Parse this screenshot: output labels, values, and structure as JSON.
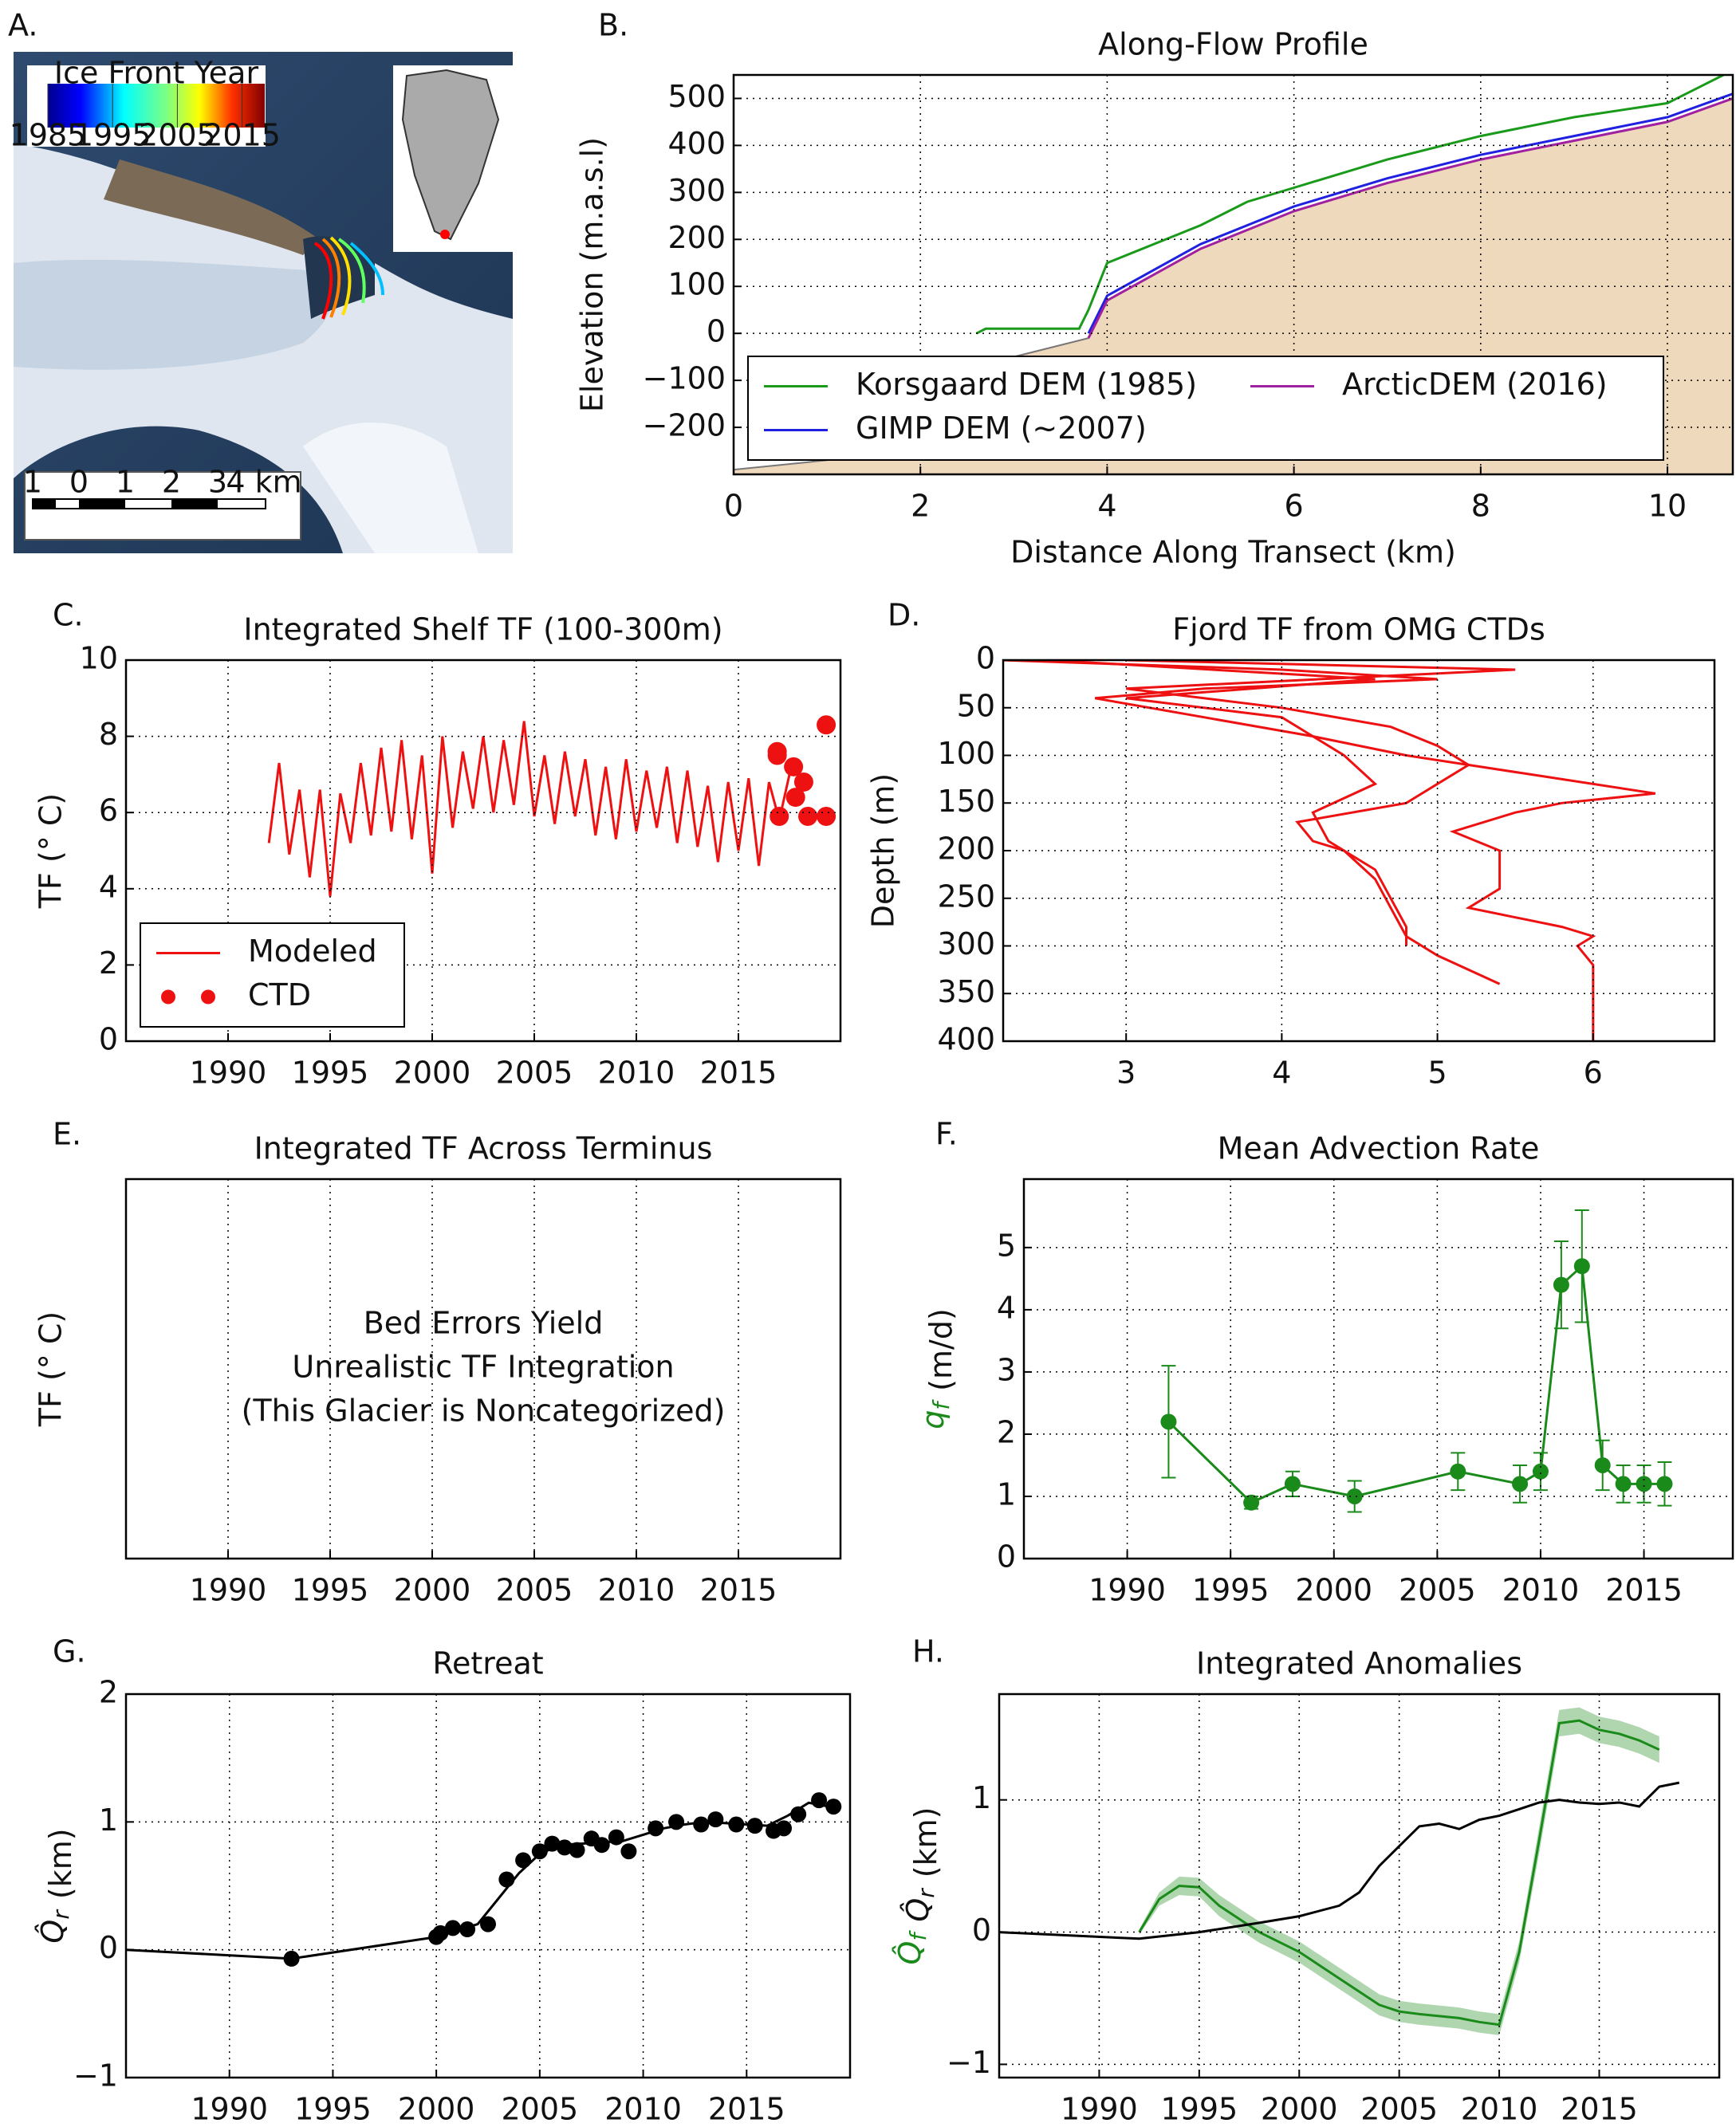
{
  "chart_data": [
    {
      "type": "map",
      "panel": "A.",
      "colorbar_label": "Ice Front Year",
      "colorbar_lim": [
        1985,
        2018.5
      ],
      "colorbar_ticks": [
        1985,
        1995,
        2005,
        2015
      ],
      "scale_labels": [
        "1",
        "0",
        "1",
        "2",
        "3",
        "4 km"
      ]
    },
    {
      "type": "line",
      "panel": "B.",
      "title": "Along-Flow Profile",
      "xlabel": "Distance Along Transect (km)",
      "ylabel": "Elevation (m.a.s.l)",
      "xlim": [
        0,
        10.7
      ],
      "ylim": [
        -300,
        550
      ],
      "xticks": [
        0,
        2,
        4,
        6,
        8,
        10
      ],
      "yticks": [
        {
          "value": -200,
          "label": "−200"
        },
        {
          "value": -100,
          "label": "−100"
        },
        0,
        100,
        200,
        300,
        400,
        500
      ],
      "grid": true,
      "legend": "lower left",
      "legend_ncol": 2,
      "fill": {
        "x": [
          0,
          1,
          2,
          3,
          3.8,
          4,
          5,
          6,
          7,
          8,
          9,
          10,
          10.7
        ],
        "values": [
          -290,
          -270,
          -160,
          -50,
          -10,
          70,
          180,
          260,
          320,
          370,
          410,
          450,
          500
        ],
        "color": "#efd9bd"
      },
      "series": [
        {
          "name": "Korsgaard DEM (1985)",
          "color": "#1a9a1a",
          "x": [
            2.6,
            2.7,
            3.7,
            3.8,
            4,
            5,
            5.5,
            6,
            7,
            8,
            9,
            10,
            10.3,
            10.7
          ],
          "values": [
            0,
            10,
            10,
            50,
            150,
            230,
            280,
            310,
            370,
            420,
            460,
            490,
            520,
            560
          ]
        },
        {
          "name": "GIMP DEM (~2007)",
          "color": "#2020e0",
          "x": [
            3.8,
            4,
            5,
            6,
            7,
            8,
            9,
            10,
            10.7
          ],
          "values": [
            0,
            80,
            190,
            270,
            330,
            380,
            420,
            460,
            510
          ]
        },
        {
          "name": "ArcticDEM (2016)",
          "color": "#a020a0",
          "x": [
            3.8,
            4,
            5,
            6,
            7,
            8,
            9,
            10,
            10.7
          ],
          "values": [
            -10,
            70,
            180,
            260,
            320,
            370,
            410,
            450,
            500
          ]
        }
      ]
    },
    {
      "type": "line",
      "panel": "C.",
      "title": "Integrated Shelf TF (100-300m)",
      "ylabel": "TF (° C)",
      "ylabel_color": "#ee1111",
      "xlim": [
        1985,
        2020
      ],
      "ylim": [
        0,
        10
      ],
      "xticks": [
        1990,
        1995,
        2000,
        2005,
        2010,
        2015
      ],
      "yticks": [
        0,
        2,
        4,
        6,
        8,
        10
      ],
      "grid": true,
      "legend": "lower left",
      "legend_ncol": 1,
      "series": [
        {
          "name": "Modeled",
          "color": "#ee1111",
          "style": "line",
          "x": [
            1992,
            1992.5,
            1993,
            1993.5,
            1994,
            1994.5,
            1995,
            1995.5,
            1996,
            1996.5,
            1997,
            1997.5,
            1998,
            1998.5,
            1999,
            1999.5,
            2000,
            2000.5,
            2001,
            2001.5,
            2002,
            2002.5,
            2003,
            2003.5,
            2004,
            2004.5,
            2005,
            2005.5,
            2006,
            2006.5,
            2007,
            2007.5,
            2008,
            2008.5,
            2009,
            2009.5,
            2010,
            2010.5,
            2011,
            2011.5,
            2012,
            2012.5,
            2013,
            2013.5,
            2014,
            2014.5,
            2015,
            2015.5,
            2016,
            2016.5,
            2017,
            2017.5
          ],
          "values": [
            5.2,
            7.3,
            4.9,
            6.6,
            4.3,
            6.6,
            3.8,
            6.5,
            5.2,
            7.3,
            5.4,
            7.7,
            5.5,
            7.9,
            5.3,
            7.5,
            4.4,
            8.0,
            5.6,
            7.6,
            6.1,
            8.0,
            6.0,
            7.9,
            6.2,
            8.4,
            5.9,
            7.5,
            5.7,
            7.6,
            5.9,
            7.4,
            5.4,
            7.2,
            5.3,
            7.4,
            5.5,
            7.1,
            5.6,
            7.2,
            5.2,
            7.1,
            5.1,
            6.7,
            4.7,
            6.8,
            5.0,
            6.9,
            4.6,
            6.8,
            5.8,
            7.0
          ]
        },
        {
          "name": "CTD",
          "color": "#ee1111",
          "style": "points",
          "x": [
            2016.9,
            2016.9,
            2017,
            2017.7,
            2017.8,
            2018.2,
            2018.4,
            2019.3,
            2019.3
          ],
          "values": [
            7.5,
            7.6,
            5.9,
            7.2,
            6.4,
            6.8,
            5.9,
            8.3,
            5.9
          ]
        }
      ]
    },
    {
      "type": "line",
      "panel": "D.",
      "title": "Fjord TF from OMG CTDs",
      "ylabel": "Depth (m)",
      "xlim": [
        2.21,
        6.78
      ],
      "ylim": [
        400,
        0
      ],
      "xticks": [
        3,
        4,
        5,
        6
      ],
      "yticks": [
        0,
        50,
        100,
        150,
        200,
        250,
        300,
        350,
        400
      ],
      "grid": true,
      "series": [
        {
          "color": "#ee1111",
          "x": [
            2.2,
            4.0,
            5.0,
            3.5,
            2.8,
            3.5,
            4.2,
            4.8,
            5.6,
            6.4,
            5.8,
            5.5,
            5.1,
            5.4,
            5.4,
            5.4,
            5.2,
            5.8,
            6.0,
            5.9,
            6.0,
            6.0,
            6.0,
            6.0,
            6.0
          ],
          "values": [
            0,
            10,
            20,
            30,
            40,
            60,
            80,
            100,
            120,
            140,
            150,
            160,
            180,
            200,
            220,
            240,
            260,
            280,
            290,
            300,
            320,
            340,
            360,
            380,
            400
          ]
        },
        {
          "color": "#ee1111",
          "x": [
            3.0,
            5.5,
            3.0,
            4.0,
            4.7,
            5.0,
            5.2,
            5.0,
            4.8,
            4.1,
            4.2,
            4.4,
            4.6,
            4.7,
            4.8,
            5.0,
            5.4
          ],
          "values": [
            0,
            10,
            30,
            50,
            70,
            90,
            110,
            130,
            150,
            170,
            190,
            200,
            230,
            260,
            290,
            310,
            340
          ]
        },
        {
          "color": "#ee1111",
          "x": [
            2.5,
            4.6,
            3.0,
            4.0,
            4.2,
            4.4,
            4.6,
            4.2,
            4.3,
            4.6,
            4.7,
            4.8,
            4.8
          ],
          "values": [
            0,
            20,
            40,
            60,
            80,
            100,
            130,
            160,
            190,
            220,
            250,
            280,
            300
          ]
        }
      ]
    },
    {
      "type": "line",
      "panel": "E.",
      "title": "Integrated TF Across Terminus",
      "ylabel": "TF (° C)",
      "ylabel_color": "#ee1111",
      "xlim": [
        1985,
        2020
      ],
      "ylim": [
        0,
        10
      ],
      "xticks": [
        1990,
        1995,
        2000,
        2005,
        2010,
        2015
      ],
      "yticks": [],
      "grid": true,
      "annotation": [
        "Bed Errors Yield",
        "Unrealistic TF Integration",
        "(This Glacier is Noncategorized)"
      ],
      "annotation_color": "#ee1111"
    },
    {
      "type": "line",
      "panel": "F.",
      "title": "Mean Advection Rate",
      "ylabel_parts": [
        {
          "text": "q",
          "sub": "f",
          "color": "#1a8a1a"
        },
        {
          "text": "(m/d)"
        }
      ],
      "xlim": [
        1985,
        2019.3
      ],
      "ylim": [
        0,
        6.1
      ],
      "xticks": [
        1990,
        1995,
        2000,
        2005,
        2010,
        2015
      ],
      "yticks": [
        0,
        1,
        2,
        3,
        4,
        5
      ],
      "grid": true,
      "series": [
        {
          "color": "#1a8a1a",
          "style": "errorbar",
          "x": [
            1992,
            1996,
            1998,
            2001,
            2006,
            2009,
            2010,
            2011,
            2012,
            2013,
            2014,
            2015,
            2016
          ],
          "values": [
            2.2,
            0.9,
            1.2,
            1.0,
            1.4,
            1.2,
            1.4,
            4.4,
            4.7,
            1.5,
            1.2,
            1.2,
            1.2
          ],
          "errors": [
            0.9,
            0.1,
            0.2,
            0.25,
            0.3,
            0.3,
            0.3,
            0.7,
            0.9,
            0.4,
            0.3,
            0.3,
            0.35
          ]
        }
      ]
    },
    {
      "type": "line",
      "panel": "G.",
      "title": "Retreat",
      "ylabel_parts": [
        {
          "text": "Q̂",
          "sub": "r"
        },
        {
          "text": "(km)"
        }
      ],
      "xlim": [
        1985,
        2020
      ],
      "ylim": [
        -1,
        2
      ],
      "xticks": [
        1990,
        1995,
        2000,
        2005,
        2010,
        2015
      ],
      "yticks": [
        {
          "value": -1,
          "label": "−1"
        },
        0,
        1,
        2
      ],
      "grid": true,
      "series": [
        {
          "color": "#000000",
          "style": "line",
          "x": [
            1985,
            1993,
            2000,
            2001,
            2002,
            2003,
            2004,
            2005,
            2006,
            2007,
            2008,
            2009,
            2010,
            2011,
            2012,
            2013,
            2014,
            2015,
            2016,
            2017,
            2018,
            2019
          ],
          "values": [
            0,
            -0.07,
            0.1,
            0.15,
            0.2,
            0.4,
            0.6,
            0.75,
            0.82,
            0.83,
            0.84,
            0.85,
            0.9,
            0.95,
            0.98,
            1.0,
            0.99,
            0.98,
            0.97,
            1.05,
            1.15,
            1.12
          ]
        },
        {
          "color": "#000000",
          "style": "points",
          "x": [
            1993,
            2000,
            2000.2,
            2000.8,
            2001.5,
            2002.5,
            2003.4,
            2004.2,
            2005,
            2005.6,
            2006.2,
            2006.8,
            2007.5,
            2008,
            2008.7,
            2009.3,
            2010.6,
            2011.6,
            2012.8,
            2013.5,
            2014.5,
            2015.4,
            2016.3,
            2016.8,
            2017.5,
            2018.5,
            2019.2
          ],
          "values": [
            -0.07,
            0.1,
            0.13,
            0.17,
            0.16,
            0.2,
            0.55,
            0.7,
            0.77,
            0.83,
            0.8,
            0.78,
            0.87,
            0.82,
            0.88,
            0.77,
            0.95,
            1.0,
            0.98,
            1.02,
            0.98,
            0.97,
            0.93,
            0.95,
            1.06,
            1.17,
            1.12
          ]
        }
      ]
    },
    {
      "type": "line",
      "panel": "H.",
      "title": "Integrated Anomalies",
      "ylabel_parts": [
        {
          "text": "Q̂",
          "sub": "f",
          "color": "#1a8a1a"
        },
        {
          "text": "Q̂",
          "sub": "r"
        },
        {
          "text": "(km)"
        }
      ],
      "xlim": [
        1985,
        2021
      ],
      "ylim": [
        -1.1,
        1.8
      ],
      "xticks": [
        1990,
        1995,
        2000,
        2005,
        2010,
        2015
      ],
      "yticks": [
        {
          "value": -1,
          "label": "−1"
        },
        0,
        1
      ],
      "grid": true,
      "series": [
        {
          "color": "#1a8a1a",
          "style": "band",
          "x": [
            1992,
            1993,
            1994,
            1995,
            1996,
            1997,
            1998,
            2000,
            2002,
            2004,
            2005,
            2006,
            2008,
            2009,
            2010,
            2011,
            2012,
            2013,
            2014,
            2015,
            2016,
            2017,
            2018
          ],
          "values": [
            0,
            0.25,
            0.35,
            0.34,
            0.2,
            0.1,
            0.0,
            -0.15,
            -0.35,
            -0.55,
            -0.6,
            -0.62,
            -0.65,
            -0.68,
            -0.7,
            -0.15,
            0.7,
            1.58,
            1.6,
            1.53,
            1.5,
            1.45,
            1.38
          ],
          "errors": [
            0.02,
            0.05,
            0.07,
            0.07,
            0.08,
            0.08,
            0.08,
            0.08,
            0.08,
            0.08,
            0.08,
            0.08,
            0.08,
            0.08,
            0.08,
            0.08,
            0.1,
            0.1,
            0.1,
            0.1,
            0.1,
            0.1,
            0.1
          ]
        },
        {
          "color": "#000000",
          "style": "line",
          "x": [
            1985,
            1992,
            1995,
            1998,
            2000,
            2002,
            2003,
            2004,
            2005,
            2006,
            2007,
            2008,
            2009,
            2010,
            2011,
            2012,
            2013,
            2014,
            2015,
            2016,
            2017,
            2018,
            2019
          ],
          "values": [
            0,
            -0.05,
            0,
            0.07,
            0.12,
            0.2,
            0.3,
            0.5,
            0.65,
            0.8,
            0.82,
            0.78,
            0.85,
            0.88,
            0.93,
            0.98,
            1.0,
            0.98,
            0.97,
            0.98,
            0.95,
            1.1,
            1.13
          ]
        }
      ]
    }
  ]
}
